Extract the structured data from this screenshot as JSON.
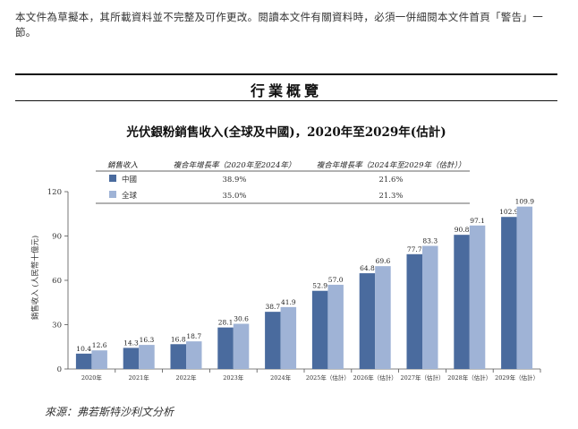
{
  "disclaimer": "本文件為草擬本，其所載資料並不完整及可作更改。閱讀本文件有關資料時，必須一併細閱本文件首頁「警告」一節。",
  "section_title": "行業概覽",
  "source": "來源：弗若斯特沙利文分析",
  "colors": {
    "china": "#4a6b9e",
    "global": "#9fb3d6"
  },
  "chart_data": {
    "type": "bar",
    "title": "光伏銀粉銷售收入(全球及中國)，2020年至2029年(估計)",
    "xlabel": "",
    "ylabel": "銷售收入 (人民幣十億元)",
    "ylim": [
      0,
      120
    ],
    "yticks": [
      0,
      30,
      60,
      90,
      120
    ],
    "categories": [
      "2020年",
      "2021年",
      "2022年",
      "2023年",
      "2024年",
      "2025年（估計）",
      "2026年（估計）",
      "2027年（估計）",
      "2028年（估計）",
      "2029年（估計）"
    ],
    "series": [
      {
        "name": "中國",
        "values": [
          10.4,
          14.3,
          16.8,
          28.1,
          38.7,
          52.9,
          64.8,
          77.7,
          90.8,
          102.9
        ]
      },
      {
        "name": "全球",
        "values": [
          12.6,
          16.3,
          18.7,
          30.6,
          41.9,
          57.0,
          69.6,
          83.3,
          97.1,
          109.9
        ]
      }
    ],
    "legend_table": {
      "headers": [
        "銷售收入",
        "複合年增長率（2020年至2024年）",
        "複合年增長率（2024年至2029年（估計））"
      ],
      "rows": [
        {
          "name": "中國",
          "cagr_hist": "38.9%",
          "cagr_fcst": "21.6%"
        },
        {
          "name": "全球",
          "cagr_hist": "35.0%",
          "cagr_fcst": "21.3%"
        }
      ]
    },
    "legend_placement": "top-left",
    "grid": false
  }
}
